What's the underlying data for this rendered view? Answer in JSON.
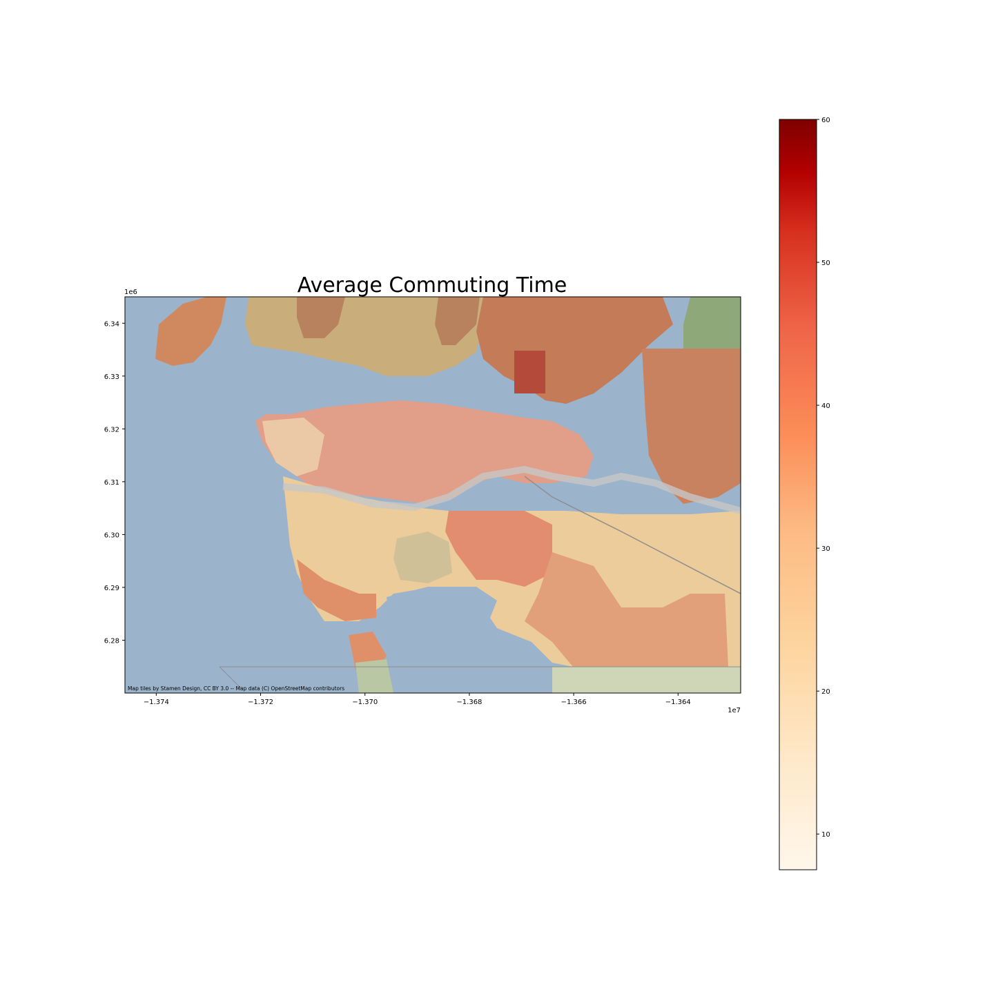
{
  "title": "Average Commuting Time",
  "attribution": "Map tiles by Stamen Design, CC BY 3.0 -- Map data (C) OpenStreetMap contributors",
  "chart_data": {
    "type": "choropleth",
    "title": "Average Commuting Time",
    "x_axis": {
      "range": [
        -13746000,
        -13628000
      ],
      "ticks": [
        -13740000,
        -13720000,
        -13700000,
        -13680000,
        -13660000,
        -13640000
      ],
      "tick_labels": [
        "−1.374",
        "−1.372",
        "−1.370",
        "−1.368",
        "−1.366",
        "−1.364"
      ],
      "offset_label": "1e7"
    },
    "y_axis": {
      "range": [
        6270000,
        6345000
      ],
      "ticks": [
        6280000,
        6290000,
        6300000,
        6310000,
        6320000,
        6330000,
        6340000
      ],
      "tick_labels": [
        "6.28",
        "6.29",
        "6.30",
        "6.31",
        "6.32",
        "6.33",
        "6.34"
      ],
      "offset_label": "1e6"
    },
    "colorbar": {
      "colormap": "OrRd",
      "range": [
        7.5,
        60
      ],
      "ticks": [
        10,
        20,
        30,
        40,
        50,
        60
      ],
      "tick_labels": [
        "10",
        "20",
        "30",
        "40",
        "50",
        "60"
      ]
    },
    "colors": {
      "water": "#9bb4cc",
      "land": "#e7dcc0",
      "low": "#fff7ec",
      "mid": "#fc8d59",
      "high": "#7f0000"
    }
  }
}
